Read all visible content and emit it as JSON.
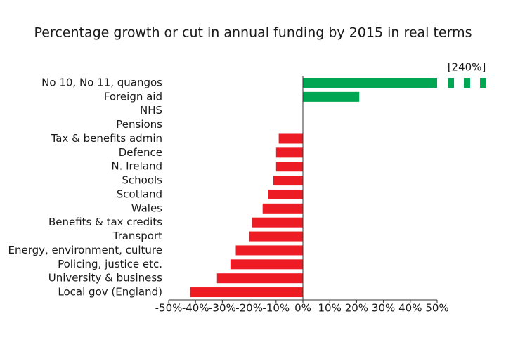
{
  "chart_data": {
    "type": "barh",
    "title": "Percentage growth or cut in annual funding by 2015 in real terms",
    "categories": [
      "No 10, No 11, quangos",
      "Foreign aid",
      "NHS",
      "Pensions",
      "Tax & benefits admin",
      "Defence",
      "N. Ireland",
      "Schools",
      "Scotland",
      "Wales",
      "Benefits & tax credits",
      "Transport",
      "Energy, environment, culture",
      "Policing, justice etc.",
      "University & business",
      "Local gov (England)"
    ],
    "values": [
      240,
      21,
      0,
      0,
      -9,
      -10,
      -10,
      -11,
      -13,
      -15,
      -19,
      -20,
      -25,
      -27,
      -32,
      -42
    ],
    "value_labels": [
      "[240%]",
      null,
      null,
      null,
      null,
      null,
      null,
      null,
      null,
      null,
      null,
      null,
      null,
      null,
      null,
      null
    ],
    "positive_color": "#00a651",
    "negative_color": "#ed1c24",
    "xlim": [
      -50,
      50
    ],
    "xticks": [
      {
        "value": -50,
        "label": "-50%"
      },
      {
        "value": -40,
        "label": "-40%"
      },
      {
        "value": -30,
        "label": "-30%"
      },
      {
        "value": -20,
        "label": "-20%"
      },
      {
        "value": -10,
        "label": "-10%"
      },
      {
        "value": 0,
        "label": "0%"
      },
      {
        "value": 10,
        "label": "10%"
      },
      {
        "value": 20,
        "label": "20%"
      },
      {
        "value": 30,
        "label": "30%"
      },
      {
        "value": 40,
        "label": "40%"
      },
      {
        "value": 50,
        "label": "50%"
      }
    ],
    "grid": false
  }
}
